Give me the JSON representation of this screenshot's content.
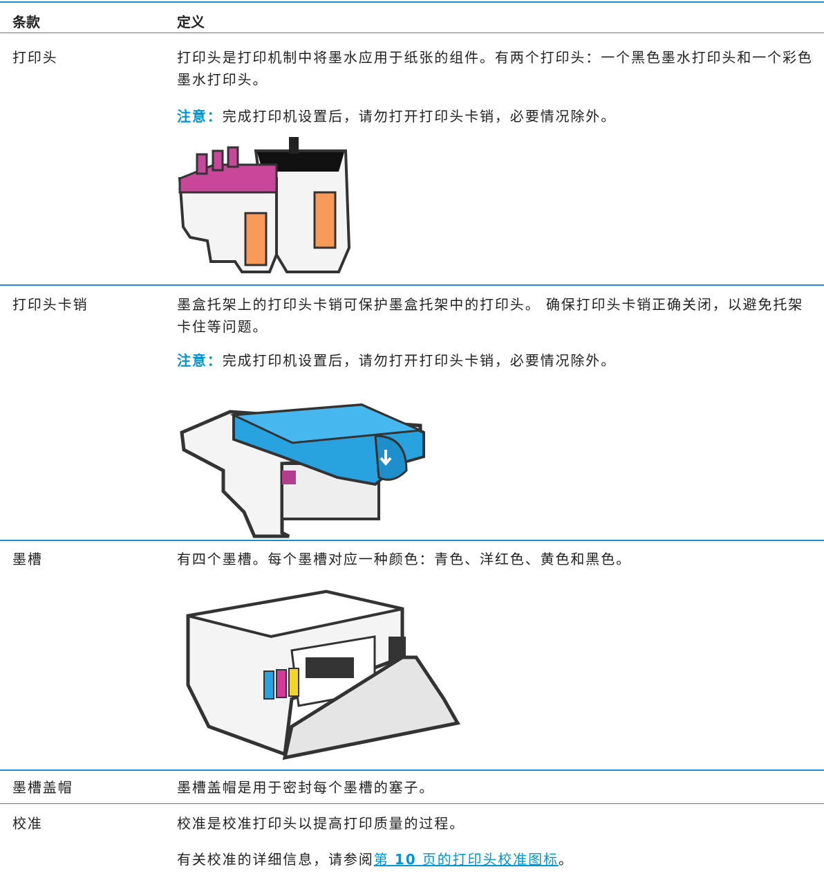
{
  "table": {
    "headers": [
      "条款",
      "定义"
    ],
    "rows": [
      {
        "term": "打印头",
        "paragraphs": [
          "打印头是打印机制中将墨水应用于纸张的组件。有两个打印头：一个黑色墨水打印头和一个彩色墨水打印头。"
        ],
        "note": {
          "label": "注意：",
          "text": "完成打印机设置后，请勿打开打印头卡销，必要情况除外。"
        }
      },
      {
        "term": "打印头卡销",
        "paragraphs": [
          "墨盒托架上的打印头卡销可保护墨盒托架中的打印头。 确保打印头卡销正确关闭，以避免托架卡住等问题。"
        ],
        "note": {
          "label": "注意：",
          "text": "完成打印机设置后，请勿打开打印头卡销，必要情况除外。"
        }
      },
      {
        "term": "墨槽",
        "paragraphs": [
          "有四个墨槽。每个墨槽对应一种颜色：青色、洋红色、黄色和黑色。"
        ]
      },
      {
        "term": "墨槽盖帽",
        "paragraphs": [
          "墨槽盖帽是用于密封每个墨槽的塞子。"
        ]
      },
      {
        "term": "校准",
        "paragraphs": [
          "校准是校准打印头以提高打印质量的过程。"
        ],
        "reference": {
          "text": "有关校准的详细信息，请参阅",
          "link_prefix": "第 ",
          "link_number": "10",
          "link_suffix": " 页的打印头校准图标",
          "end": "。"
        }
      }
    ]
  }
}
